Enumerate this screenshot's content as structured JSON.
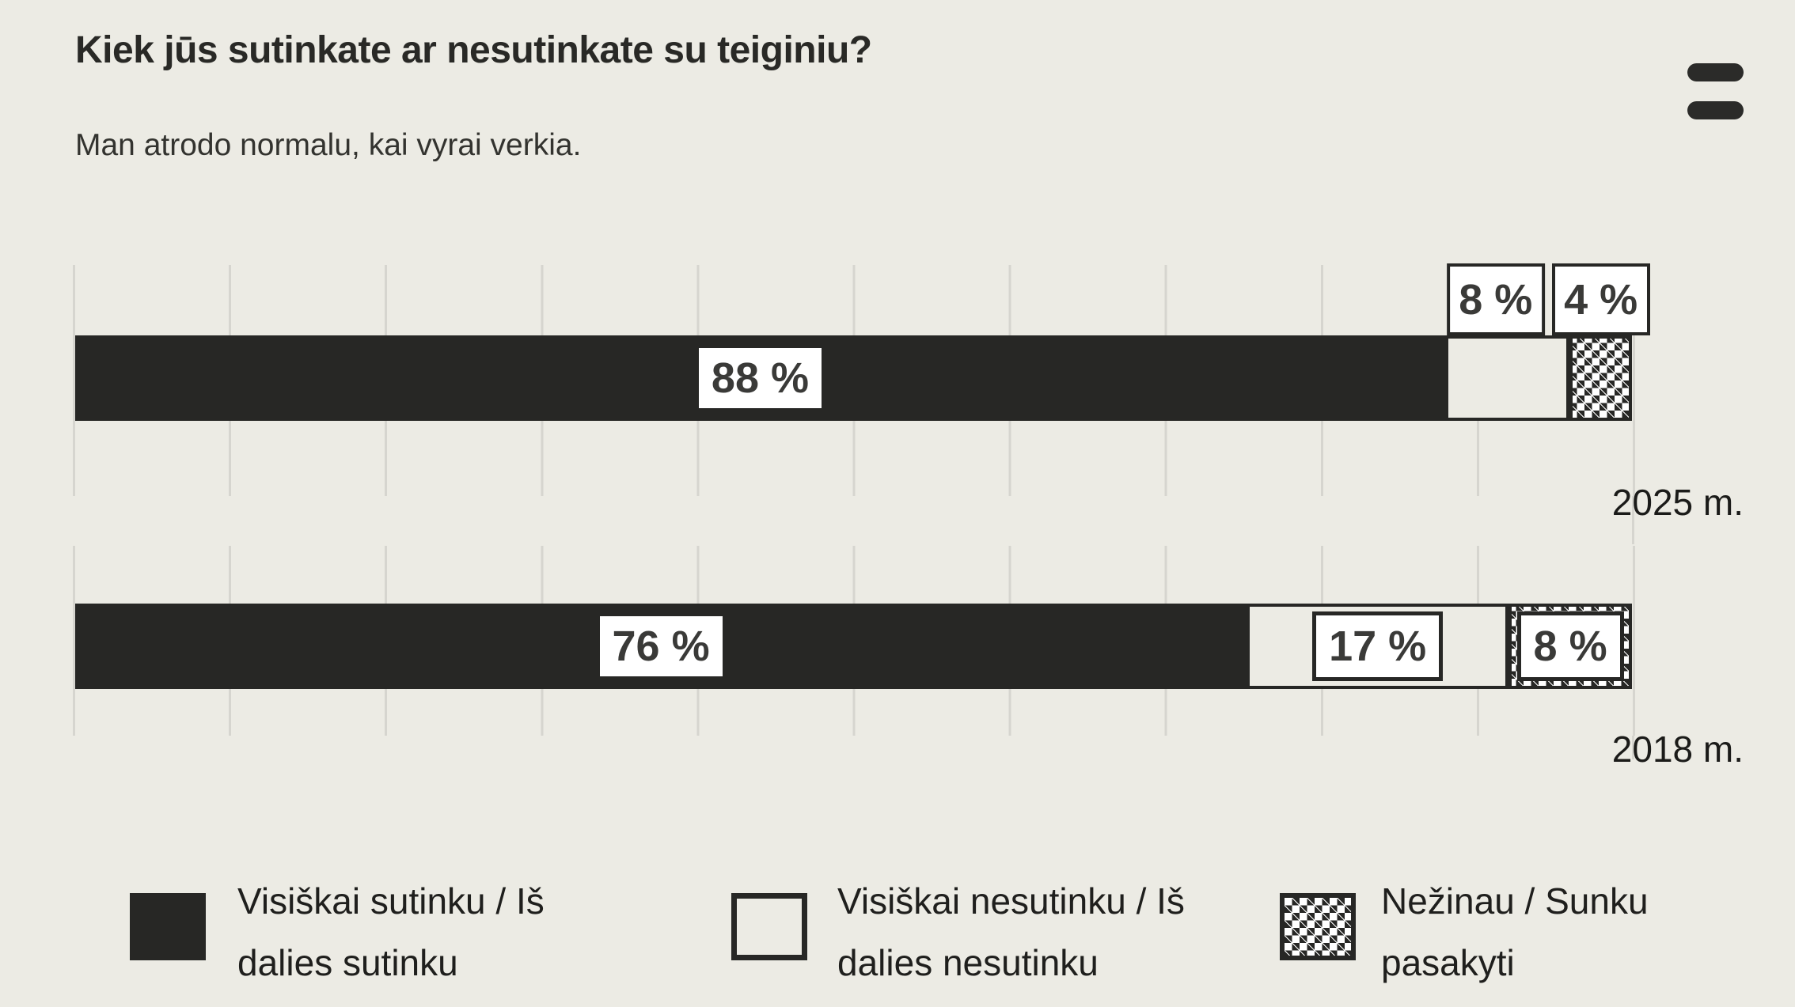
{
  "header": {
    "title": "Kiek jūs sutinkate ar nesutinkate su teiginiu?",
    "subtitle": "Man atrodo normalu, kai vyrai verkia.",
    "menu_icon": "hamburger-menu-icon"
  },
  "chart_data": {
    "type": "bar",
    "orientation": "horizontal",
    "stacked": true,
    "unit": "%",
    "xlim": [
      0,
      100
    ],
    "gridlines": "vertical every 10%",
    "legend_position": "bottom",
    "categories": [
      "2025 m.",
      "2018 m."
    ],
    "series": [
      {
        "name": "Visiškai sutinku / Iš dalies sutinku",
        "style": "solid-dark",
        "values": [
          88,
          76
        ]
      },
      {
        "name": "Visiškai nesutinku / Iš dalies nesutinku",
        "style": "outline-light",
        "values": [
          8,
          17
        ]
      },
      {
        "name": "Nežinau / Sunku pasakyti",
        "style": "diamond-pattern",
        "values": [
          4,
          8
        ]
      }
    ],
    "rows": [
      {
        "year": "2025 m.",
        "segments": [
          {
            "value": 88,
            "label": "88 %",
            "label_position": "inside"
          },
          {
            "value": 8,
            "label": "8 %",
            "label_position": "above"
          },
          {
            "value": 4,
            "label": "4 %",
            "label_position": "above"
          }
        ]
      },
      {
        "year": "2018 m.",
        "segments": [
          {
            "value": 76,
            "label": "76 %",
            "label_position": "inside"
          },
          {
            "value": 17,
            "label": "17 %",
            "label_position": "inside-boxed"
          },
          {
            "value": 8,
            "label": "8 %",
            "label_position": "inside-boxed"
          }
        ]
      }
    ]
  },
  "legend": {
    "items": [
      {
        "label": "Visiškai sutinku / Iš dalies sutinku",
        "swatch": "solid-dark-swatch"
      },
      {
        "label": "Visiškai nesutinku / Iš dalies nesutinku",
        "swatch": "outline-swatch"
      },
      {
        "label": "Nežinau / Sunku pasakyti",
        "swatch": "diamond-pattern-swatch"
      }
    ]
  },
  "colors": {
    "background": "#ECEBE4",
    "ink": "#272725",
    "gridline": "#D6D5CF",
    "label_box": "#FFFFFF",
    "number_text": "#3A3A38"
  }
}
